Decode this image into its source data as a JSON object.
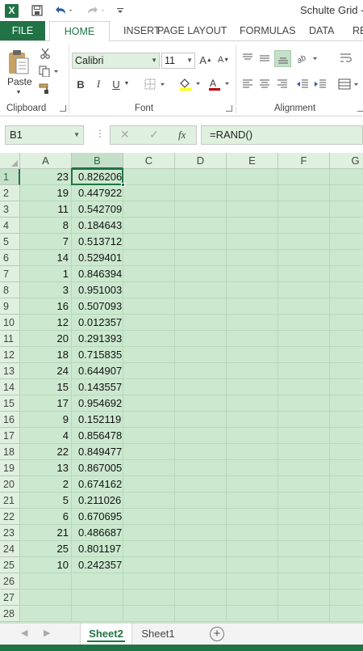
{
  "title_bar": {
    "app_logo": "X",
    "title": "Schulte Grid - (",
    "icons": [
      "save-icon",
      "undo-icon",
      "redo-icon",
      "customize-icon"
    ]
  },
  "ribbon_tabs": [
    "FILE",
    "HOME",
    "INSERT",
    "PAGE LAYOUT",
    "FORMULAS",
    "DATA",
    "RE"
  ],
  "ribbon": {
    "clipboard": {
      "paste_label": "Paste",
      "group_label": "Clipboard"
    },
    "font": {
      "font_name": "Calibri",
      "font_size": "11",
      "group_label": "Font",
      "font_color": "#c00000",
      "highlight_color": "#ffff00"
    },
    "alignment": {
      "group_label": "Alignment"
    }
  },
  "formula_bar": {
    "name_box": "B1",
    "fx_label": "fx",
    "formula": "=RAND()"
  },
  "grid": {
    "columns": [
      "A",
      "B",
      "C",
      "D",
      "E",
      "F",
      "G"
    ],
    "selected_column": "B",
    "selected_row": "1",
    "rows": [
      {
        "n": "1",
        "a": "23",
        "b": "0.826206"
      },
      {
        "n": "2",
        "a": "19",
        "b": "0.447922"
      },
      {
        "n": "3",
        "a": "11",
        "b": "0.542709"
      },
      {
        "n": "4",
        "a": "8",
        "b": "0.184643"
      },
      {
        "n": "5",
        "a": "7",
        "b": "0.513712"
      },
      {
        "n": "6",
        "a": "14",
        "b": "0.529401"
      },
      {
        "n": "7",
        "a": "1",
        "b": "0.846394"
      },
      {
        "n": "8",
        "a": "3",
        "b": "0.951003"
      },
      {
        "n": "9",
        "a": "16",
        "b": "0.507093"
      },
      {
        "n": "10",
        "a": "12",
        "b": "0.012357"
      },
      {
        "n": "11",
        "a": "20",
        "b": "0.291393"
      },
      {
        "n": "12",
        "a": "18",
        "b": "0.715835"
      },
      {
        "n": "13",
        "a": "24",
        "b": "0.644907"
      },
      {
        "n": "14",
        "a": "15",
        "b": "0.143557"
      },
      {
        "n": "15",
        "a": "17",
        "b": "0.954692"
      },
      {
        "n": "16",
        "a": "9",
        "b": "0.152119"
      },
      {
        "n": "17",
        "a": "4",
        "b": "0.856478"
      },
      {
        "n": "18",
        "a": "22",
        "b": "0.849477"
      },
      {
        "n": "19",
        "a": "13",
        "b": "0.867005"
      },
      {
        "n": "20",
        "a": "2",
        "b": "0.674162"
      },
      {
        "n": "21",
        "a": "5",
        "b": "0.211026"
      },
      {
        "n": "22",
        "a": "6",
        "b": "0.670695"
      },
      {
        "n": "23",
        "a": "21",
        "b": "0.486687"
      },
      {
        "n": "24",
        "a": "25",
        "b": "0.801197"
      },
      {
        "n": "25",
        "a": "10",
        "b": "0.242357"
      },
      {
        "n": "26",
        "a": "",
        "b": ""
      },
      {
        "n": "27",
        "a": "",
        "b": ""
      },
      {
        "n": "28",
        "a": "",
        "b": ""
      }
    ]
  },
  "sheet_tabs": {
    "tabs": [
      "Sheet2",
      "Sheet1"
    ],
    "active": "Sheet2",
    "add_label": "+"
  },
  "colors": {
    "accent": "#217346",
    "grid_fill": "#cce9cf"
  }
}
